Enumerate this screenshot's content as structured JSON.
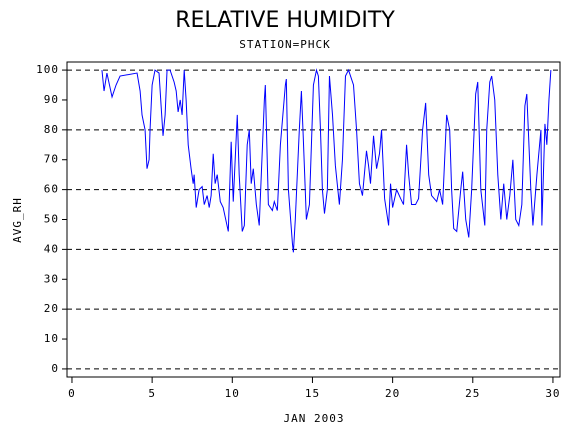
{
  "chart_data": {
    "type": "line",
    "title": "RELATIVE HUMIDITY",
    "subtitle": "STATION=PHCK",
    "x_label": "JAN 2003",
    "y_label": "AVG_RH",
    "xlim": [
      -0.31,
      30.44
    ],
    "ylim": [
      -2.7,
      102.7
    ],
    "xticks": [
      0,
      5,
      10,
      15,
      20,
      25,
      30
    ],
    "yticks": [
      0,
      10,
      20,
      30,
      40,
      50,
      60,
      70,
      80,
      90,
      100
    ],
    "grid_values": [
      0,
      20,
      40,
      60,
      80,
      100
    ],
    "grid": true,
    "x": [
      1.87,
      2.0,
      2.18,
      2.5,
      2.75,
      3.0,
      4.06,
      4.25,
      4.37,
      4.56,
      4.68,
      4.81,
      4.87,
      5.0,
      5.18,
      5.43,
      5.56,
      5.68,
      5.81,
      5.93,
      6.12,
      6.37,
      6.5,
      6.62,
      6.75,
      6.87,
      7.0,
      7.12,
      7.25,
      7.43,
      7.56,
      7.62,
      7.75,
      7.93,
      8.12,
      8.25,
      8.43,
      8.56,
      8.68,
      8.81,
      8.93,
      9.06,
      9.25,
      9.43,
      9.75,
      9.93,
      10.06,
      10.18,
      10.31,
      10.43,
      10.62,
      10.75,
      10.93,
      11.06,
      11.18,
      11.31,
      11.5,
      11.68,
      12.0,
      12.06,
      12.25,
      12.5,
      12.62,
      12.81,
      13.0,
      13.31,
      13.37,
      13.5,
      13.75,
      13.81,
      13.93,
      14.18,
      14.31,
      14.43,
      14.62,
      14.81,
      15.06,
      15.25,
      15.37,
      15.5,
      15.62,
      15.75,
      15.93,
      16.06,
      16.25,
      16.43,
      16.68,
      16.87,
      17.06,
      17.25,
      17.56,
      17.75,
      17.93,
      18.12,
      18.37,
      18.5,
      18.62,
      18.81,
      19.0,
      19.18,
      19.31,
      19.5,
      19.75,
      19.87,
      20.0,
      20.25,
      20.5,
      20.68,
      20.87,
      21.0,
      21.18,
      21.43,
      21.62,
      21.87,
      22.06,
      22.25,
      22.43,
      22.75,
      22.93,
      23.12,
      23.37,
      23.56,
      23.68,
      23.81,
      24.0,
      24.25,
      24.37,
      24.56,
      24.75,
      24.93,
      25.18,
      25.31,
      25.5,
      25.75,
      25.87,
      26.06,
      26.18,
      26.37,
      26.56,
      26.75,
      26.93,
      27.12,
      27.31,
      27.5,
      27.68,
      27.87,
      28.06,
      28.25,
      28.37,
      28.62,
      28.75,
      29.0,
      29.25,
      29.31,
      29.5,
      29.62,
      29.75,
      29.87
    ],
    "series": [
      {
        "name": "AVG_RH",
        "color": "#0000ff",
        "values": [
          100,
          93,
          99,
          91,
          95,
          98,
          99,
          93,
          85,
          80,
          67,
          70,
          80,
          95,
          100,
          99,
          88,
          78,
          85,
          100,
          100,
          96,
          93,
          86,
          90,
          85,
          100,
          90,
          75,
          67,
          62,
          65,
          54,
          60,
          61,
          55,
          58,
          54,
          58,
          72,
          62,
          65,
          56,
          54,
          46,
          76,
          56,
          70,
          85,
          65,
          46,
          48,
          75,
          80,
          62,
          67,
          55,
          48,
          90,
          95,
          55,
          53,
          56,
          53,
          75,
          95,
          97,
          60,
          42,
          39,
          50,
          80,
          93,
          77,
          50,
          55,
          95,
          100,
          98,
          80,
          60,
          52,
          60,
          98,
          85,
          68,
          55,
          70,
          98,
          100,
          95,
          80,
          62,
          58,
          73,
          68,
          62,
          78,
          67,
          72,
          80,
          57,
          48,
          62,
          54,
          60,
          57,
          55,
          75,
          65,
          55,
          55,
          57,
          80,
          89,
          65,
          58,
          56,
          60,
          55,
          85,
          80,
          60,
          47,
          46,
          60,
          66,
          50,
          44,
          60,
          92,
          96,
          60,
          48,
          80,
          96,
          98,
          90,
          65,
          50,
          62,
          50,
          58,
          70,
          50,
          48,
          55,
          88,
          92,
          60,
          48,
          65,
          80,
          48,
          82,
          75,
          90,
          100
        ]
      }
    ]
  }
}
